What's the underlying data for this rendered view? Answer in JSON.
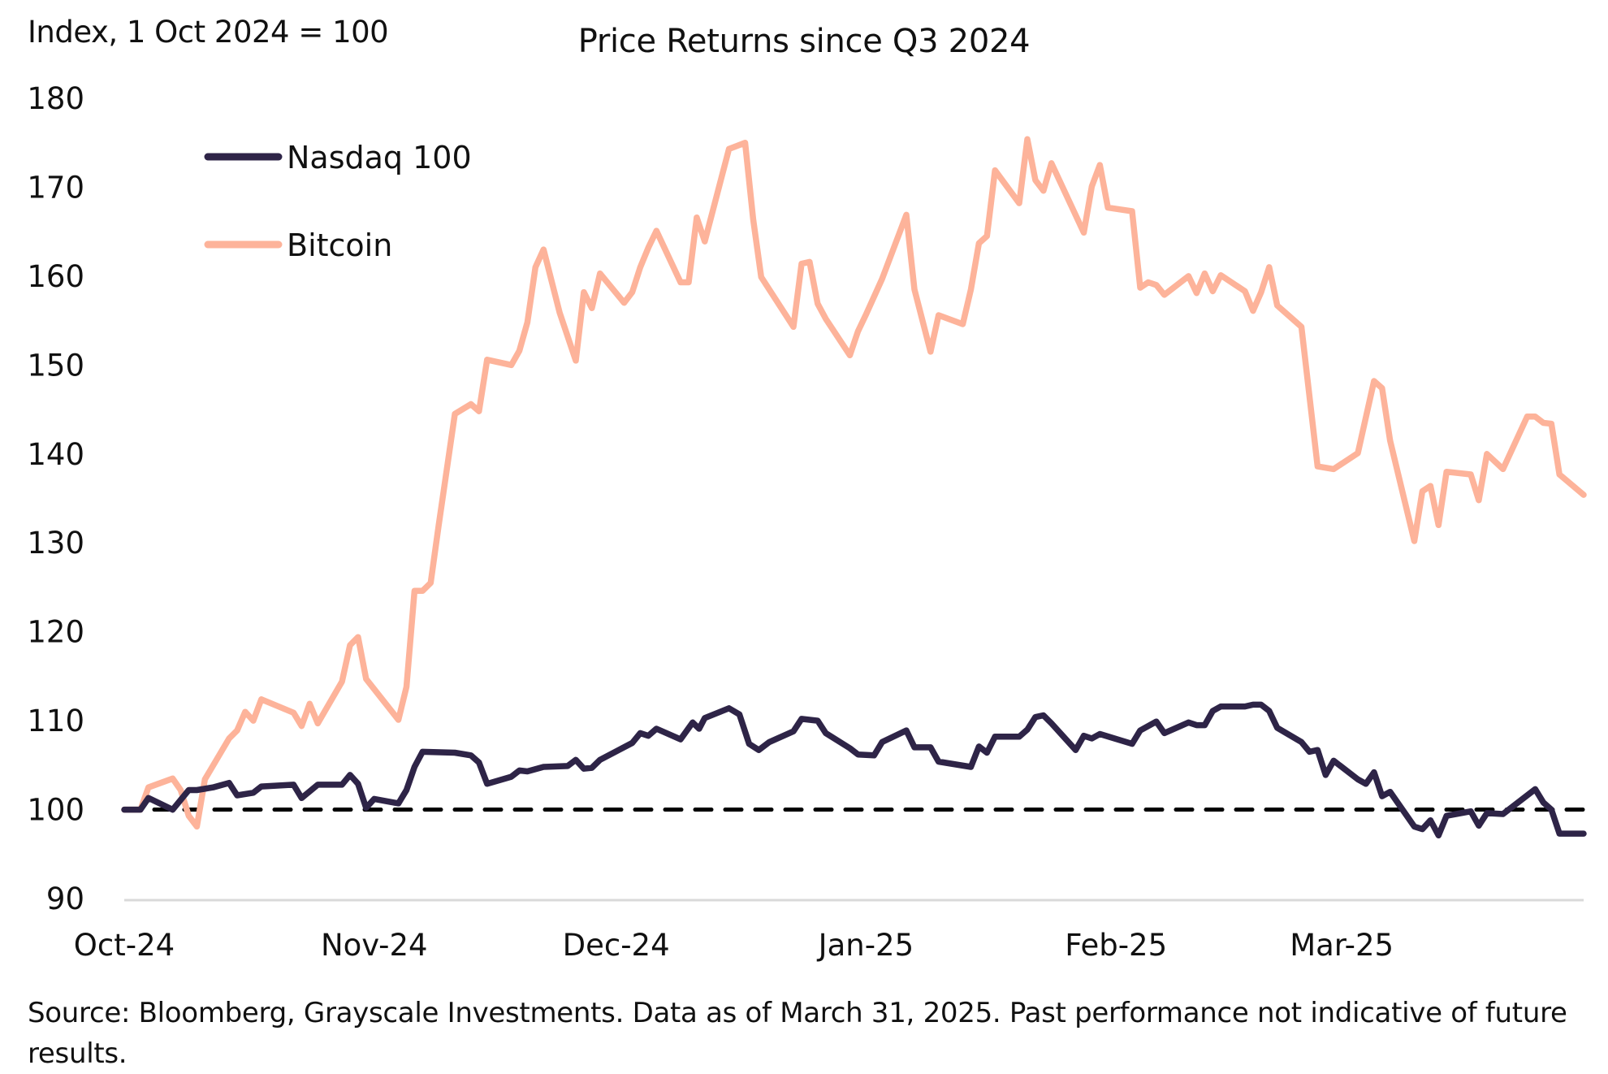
{
  "chart_data": {
    "type": "line",
    "title": "Price Returns since Q3 2024",
    "ylabel": "Index, 1 Oct 2024 = 100",
    "xlabel": "",
    "ylim": [
      90,
      180
    ],
    "yticks": [
      90,
      100,
      110,
      120,
      130,
      140,
      150,
      160,
      170,
      180
    ],
    "xlim_days": [
      0,
      181
    ],
    "x_unit": "days since 1 Oct 2024",
    "xticks": [
      {
        "label": "Oct-24",
        "day": 0
      },
      {
        "label": "Nov-24",
        "day": 31
      },
      {
        "label": "Dec-24",
        "day": 61
      },
      {
        "label": "Jan-25",
        "day": 92
      },
      {
        "label": "Feb-25",
        "day": 123
      },
      {
        "label": "Mar-25",
        "day": 151
      }
    ],
    "reference_line": {
      "value": 100,
      "style": "dashed",
      "color": "#000000"
    },
    "grid": false,
    "legend_position": "top-left",
    "series": [
      {
        "name": "Nasdaq 100",
        "color": "#2e2447",
        "points": [
          [
            0,
            100
          ],
          [
            2,
            100
          ],
          [
            3,
            101.3
          ],
          [
            6,
            100
          ],
          [
            8,
            102.2
          ],
          [
            9,
            102.2
          ],
          [
            11,
            102.5
          ],
          [
            13,
            103
          ],
          [
            14,
            101.6
          ],
          [
            16,
            101.9
          ],
          [
            17,
            102.6
          ],
          [
            21,
            102.8
          ],
          [
            22,
            101.3
          ],
          [
            24,
            102.8
          ],
          [
            27,
            102.8
          ],
          [
            28,
            103.9
          ],
          [
            29,
            102.9
          ],
          [
            30,
            100.2
          ],
          [
            31,
            101.2
          ],
          [
            34,
            100.7
          ],
          [
            35,
            102.2
          ],
          [
            36,
            104.8
          ],
          [
            37,
            106.5
          ],
          [
            41,
            106.4
          ],
          [
            43,
            106.1
          ],
          [
            44,
            105.3
          ],
          [
            45,
            102.9
          ],
          [
            48,
            103.7
          ],
          [
            49,
            104.4
          ],
          [
            50,
            104.3
          ],
          [
            52,
            104.8
          ],
          [
            55,
            104.9
          ],
          [
            56,
            105.6
          ],
          [
            57,
            104.6
          ],
          [
            58,
            104.7
          ],
          [
            59,
            105.6
          ],
          [
            63,
            107.5
          ],
          [
            64,
            108.6
          ],
          [
            65,
            108.3
          ],
          [
            66,
            109.1
          ],
          [
            69,
            107.9
          ],
          [
            70.5,
            109.8
          ],
          [
            71.3,
            109.1
          ],
          [
            72,
            110.3
          ],
          [
            75,
            111.4
          ],
          [
            76.3,
            110.7
          ],
          [
            77.5,
            107.4
          ],
          [
            78.7,
            106.7
          ],
          [
            80,
            107.6
          ],
          [
            83,
            108.8
          ],
          [
            84,
            110.2
          ],
          [
            86,
            110
          ],
          [
            87,
            108.6
          ],
          [
            90,
            106.9
          ],
          [
            91,
            106.2
          ],
          [
            93,
            106.1
          ],
          [
            94,
            107.6
          ],
          [
            97,
            108.9
          ],
          [
            98,
            107
          ],
          [
            100,
            107
          ],
          [
            101,
            105.4
          ],
          [
            105,
            104.8
          ],
          [
            106,
            107.1
          ],
          [
            107,
            106.4
          ],
          [
            108,
            108.2
          ],
          [
            111,
            108.2
          ],
          [
            112,
            109
          ],
          [
            113,
            110.4
          ],
          [
            114,
            110.6
          ],
          [
            115,
            109.7
          ],
          [
            118,
            106.7
          ],
          [
            119,
            108.3
          ],
          [
            120,
            108
          ],
          [
            121,
            108.5
          ],
          [
            125,
            107.4
          ],
          [
            126,
            108.9
          ],
          [
            128,
            109.9
          ],
          [
            129,
            108.6
          ],
          [
            132,
            109.8
          ],
          [
            133,
            109.5
          ],
          [
            134,
            109.5
          ],
          [
            135,
            111.1
          ],
          [
            136,
            111.6
          ],
          [
            139,
            111.6
          ],
          [
            140,
            111.8
          ],
          [
            141,
            111.8
          ],
          [
            142,
            111.1
          ],
          [
            143,
            109.2
          ],
          [
            146,
            107.6
          ],
          [
            147,
            106.5
          ],
          [
            148,
            106.7
          ],
          [
            149,
            103.9
          ],
          [
            150,
            105.5
          ],
          [
            153,
            103.4
          ],
          [
            154,
            102.9
          ],
          [
            155,
            104.2
          ],
          [
            156,
            101.5
          ],
          [
            157,
            102
          ],
          [
            160,
            98.1
          ],
          [
            161,
            97.8
          ],
          [
            162,
            98.8
          ],
          [
            163,
            97.1
          ],
          [
            164,
            99.3
          ],
          [
            167,
            99.8
          ],
          [
            168,
            98.2
          ],
          [
            169,
            99.6
          ],
          [
            171,
            99.5
          ],
          [
            175,
            102.3
          ],
          [
            176,
            100.8
          ],
          [
            177,
            100
          ],
          [
            178,
            97.3
          ],
          [
            181,
            97.3
          ]
        ]
      },
      {
        "name": "Bitcoin",
        "color": "#fdb39a",
        "points": [
          [
            0,
            100
          ],
          [
            2,
            100
          ],
          [
            3,
            102.5
          ],
          [
            6,
            103.5
          ],
          [
            7,
            102.2
          ],
          [
            8,
            99.3
          ],
          [
            9,
            98.1
          ],
          [
            10,
            103.4
          ],
          [
            13,
            108
          ],
          [
            14,
            108.9
          ],
          [
            15,
            111
          ],
          [
            16,
            110
          ],
          [
            17,
            112.4
          ],
          [
            21,
            110.9
          ],
          [
            22,
            109.4
          ],
          [
            23,
            111.9
          ],
          [
            24,
            109.7
          ],
          [
            27,
            114.4
          ],
          [
            28,
            118.5
          ],
          [
            29,
            119.4
          ],
          [
            30,
            114.7
          ],
          [
            34,
            110.1
          ],
          [
            35,
            113.8
          ],
          [
            36,
            124.6
          ],
          [
            37,
            124.6
          ],
          [
            38,
            125.5
          ],
          [
            39,
            132
          ],
          [
            41,
            144.5
          ],
          [
            43,
            145.6
          ],
          [
            44,
            144.8
          ],
          [
            45,
            150.6
          ],
          [
            48,
            150
          ],
          [
            49,
            151.6
          ],
          [
            50,
            154.8
          ],
          [
            51,
            161
          ],
          [
            52,
            163
          ],
          [
            54,
            155.9
          ],
          [
            56,
            150.5
          ],
          [
            57,
            158.2
          ],
          [
            58,
            156.4
          ],
          [
            59,
            160.3
          ],
          [
            62,
            157
          ],
          [
            63,
            158.2
          ],
          [
            64,
            161
          ],
          [
            65,
            163.2
          ],
          [
            66,
            165.1
          ],
          [
            69,
            159.3
          ],
          [
            70,
            159.3
          ],
          [
            71,
            166.6
          ],
          [
            72,
            163.9
          ],
          [
            75,
            174.3
          ],
          [
            77,
            175
          ],
          [
            78,
            166.4
          ],
          [
            79,
            159.9
          ],
          [
            83,
            154.3
          ],
          [
            84,
            161.4
          ],
          [
            85,
            161.6
          ],
          [
            86,
            156.9
          ],
          [
            87,
            155.2
          ],
          [
            90,
            151.1
          ],
          [
            91,
            153.8
          ],
          [
            92,
            155.7
          ],
          [
            94,
            159.7
          ],
          [
            97,
            166.9
          ],
          [
            98,
            158.5
          ],
          [
            100,
            151.5
          ],
          [
            101,
            155.6
          ],
          [
            104,
            154.6
          ],
          [
            105,
            158.5
          ],
          [
            106,
            163.7
          ],
          [
            107,
            164.5
          ],
          [
            108,
            171.9
          ],
          [
            111,
            168.2
          ],
          [
            112,
            175.4
          ],
          [
            113,
            170.8
          ],
          [
            114,
            169.6
          ],
          [
            115,
            172.7
          ],
          [
            119,
            164.9
          ],
          [
            120,
            170.1
          ],
          [
            121,
            172.5
          ],
          [
            122,
            167.7
          ],
          [
            125,
            167.3
          ],
          [
            126,
            158.7
          ],
          [
            127,
            159.3
          ],
          [
            128,
            159
          ],
          [
            129,
            157.9
          ],
          [
            132,
            160
          ],
          [
            133,
            158.1
          ],
          [
            134,
            160.3
          ],
          [
            135,
            158.3
          ],
          [
            136,
            160.1
          ],
          [
            139,
            158.3
          ],
          [
            140,
            156.1
          ],
          [
            141,
            158.2
          ],
          [
            142,
            161
          ],
          [
            143,
            156.7
          ],
          [
            146,
            154.3
          ],
          [
            148,
            138.6
          ],
          [
            150,
            138.3
          ],
          [
            153,
            140.1
          ],
          [
            155,
            148.2
          ],
          [
            156,
            147.4
          ],
          [
            157,
            141.5
          ],
          [
            160,
            130.2
          ],
          [
            161,
            135.8
          ],
          [
            162,
            136.4
          ],
          [
            163,
            132
          ],
          [
            164,
            138
          ],
          [
            167,
            137.7
          ],
          [
            168,
            134.8
          ],
          [
            169,
            140
          ],
          [
            171,
            138.3
          ],
          [
            174,
            144.2
          ],
          [
            175,
            144.2
          ],
          [
            176,
            143.5
          ],
          [
            177,
            143.4
          ],
          [
            178,
            137.7
          ],
          [
            181,
            135.4
          ]
        ]
      }
    ]
  },
  "footnote": "Source: Bloomberg, Grayscale Investments. Data as of March 31, 2025. Past performance not indicative of future results."
}
